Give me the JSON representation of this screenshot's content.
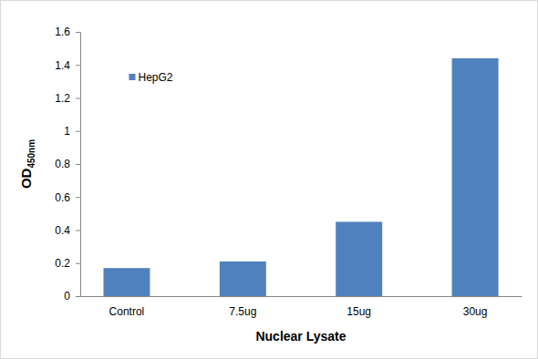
{
  "chart_data": {
    "type": "bar",
    "x_label": "Nuclear Lysate",
    "y_label": "OD450nm",
    "categories": [
      "Control",
      "7.5ug",
      "15ug",
      "30ug"
    ],
    "series": [
      {
        "name": "HepG2",
        "color": "#4f81bd",
        "values": [
          0.17,
          0.21,
          0.45,
          1.44
        ]
      }
    ],
    "ylim": [
      0,
      1.6
    ],
    "yticks": [
      0,
      0.2,
      0.4,
      0.6,
      0.8,
      1,
      1.2,
      1.4,
      1.6
    ],
    "legend": "top-left",
    "grid": false
  }
}
